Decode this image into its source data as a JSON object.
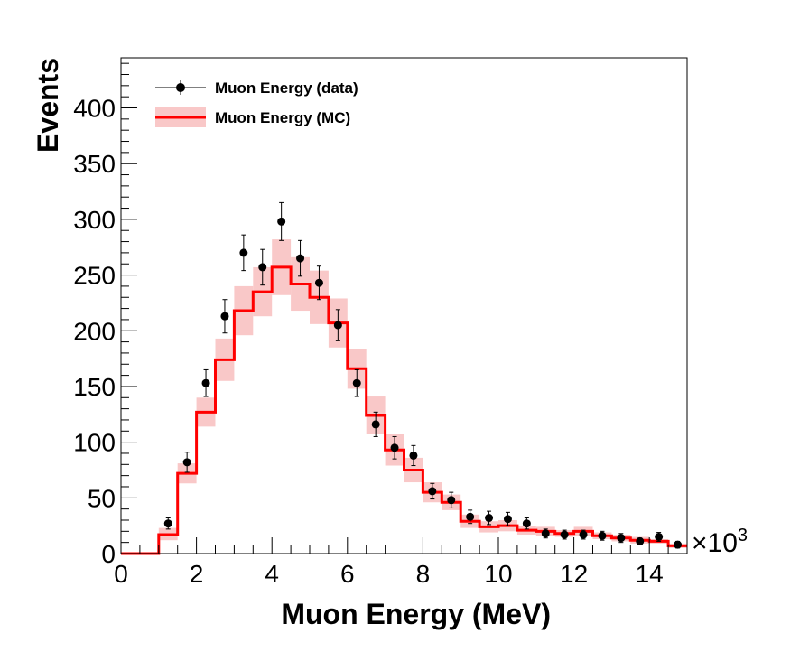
{
  "chart_data": {
    "type": "line",
    "xlabel": "Muon Energy (MeV)",
    "ylabel": "Events",
    "x_scale_label": "10",
    "x_scale_exponent": "3",
    "xlim": [
      0,
      15
    ],
    "ylim": [
      0,
      445
    ],
    "x_ticks": [
      0,
      2,
      4,
      6,
      8,
      10,
      12,
      14
    ],
    "y_ticks": [
      0,
      50,
      100,
      150,
      200,
      250,
      300,
      350,
      400
    ],
    "grid": false,
    "legend_position": "top-left",
    "legend": [
      {
        "label": "Muon Energy (data)",
        "kind": "points"
      },
      {
        "label": "Muon Energy (MC)",
        "kind": "histogram-band"
      }
    ],
    "bin_edges": [
      0,
      0.5,
      1,
      1.5,
      2,
      2.5,
      3,
      3.5,
      4,
      4.5,
      5,
      5.5,
      6,
      6.5,
      7,
      7.5,
      8,
      8.5,
      9,
      9.5,
      10,
      10.5,
      11,
      11.5,
      12,
      12.5,
      13,
      13.5,
      14,
      14.5,
      15
    ],
    "series": [
      {
        "name": "Muon Energy (MC)",
        "color": "#ff0000",
        "band_color": "#f9c8c8",
        "values": [
          0,
          0,
          17,
          72,
          127,
          174,
          218,
          235,
          257,
          242,
          230,
          207,
          166,
          124,
          93,
          75,
          55,
          46,
          29,
          24,
          25,
          21,
          20,
          18,
          20,
          16,
          14,
          12,
          11,
          7
        ],
        "band_low": [
          0,
          0,
          12,
          63,
          114,
          155,
          196,
          213,
          232,
          218,
          206,
          185,
          148,
          107,
          79,
          64,
          46,
          39,
          23,
          19,
          20,
          17,
          16,
          15,
          16,
          13,
          11,
          9,
          9,
          5
        ],
        "band_high": [
          0,
          0,
          23,
          81,
          140,
          193,
          240,
          257,
          282,
          266,
          254,
          229,
          184,
          141,
          107,
          86,
          64,
          53,
          35,
          29,
          30,
          25,
          24,
          21,
          24,
          19,
          17,
          15,
          13,
          9
        ]
      },
      {
        "name": "Muon Energy (data)",
        "color": "#000000",
        "x": [
          1.25,
          1.75,
          2.25,
          2.75,
          3.25,
          3.75,
          4.25,
          4.75,
          5.25,
          5.75,
          6.25,
          6.75,
          7.25,
          7.75,
          8.25,
          8.75,
          9.25,
          9.75,
          10.25,
          10.75,
          11.25,
          11.75,
          12.25,
          12.75,
          13.25,
          13.75,
          14.25,
          14.75
        ],
        "y": [
          27,
          82,
          153,
          213,
          270,
          257,
          298,
          265,
          243,
          205,
          153,
          116,
          95,
          88,
          56,
          48,
          33,
          32,
          31,
          27,
          18,
          17,
          17,
          16,
          14,
          11,
          15,
          8
        ],
        "yerr": [
          5,
          9,
          12,
          15,
          16,
          16,
          17,
          16,
          15,
          14,
          12,
          11,
          10,
          9,
          7,
          7,
          6,
          6,
          6,
          5,
          4,
          4,
          4,
          4,
          4,
          3,
          4,
          3
        ]
      }
    ]
  }
}
